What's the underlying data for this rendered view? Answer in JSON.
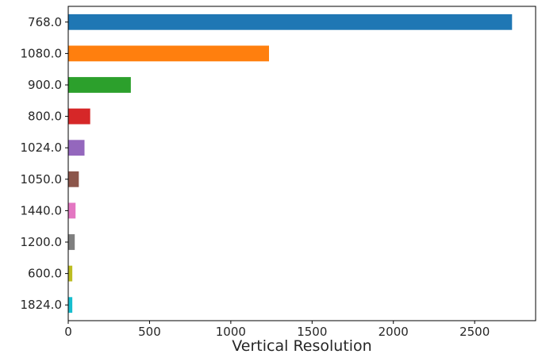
{
  "chart_data": {
    "type": "bar",
    "orientation": "horizontal",
    "title": "",
    "xlabel": "Vertical Resolution",
    "ylabel": "",
    "categories": [
      "768.0",
      "1080.0",
      "900.0",
      "800.0",
      "1024.0",
      "1050.0",
      "1440.0",
      "1200.0",
      "600.0",
      "1824.0"
    ],
    "values": [
      2730,
      1235,
      385,
      135,
      100,
      65,
      45,
      40,
      25,
      25
    ],
    "colors": [
      "#1f77b4",
      "#ff7f0e",
      "#2ca02c",
      "#d62728",
      "#9467bd",
      "#8c564b",
      "#e377c2",
      "#7f7f7f",
      "#bcbd22",
      "#17becf"
    ],
    "xlim": [
      0,
      2875
    ],
    "xticks": [
      0,
      500,
      1000,
      1500,
      2000,
      2500
    ],
    "grid": false,
    "legend": "none"
  }
}
